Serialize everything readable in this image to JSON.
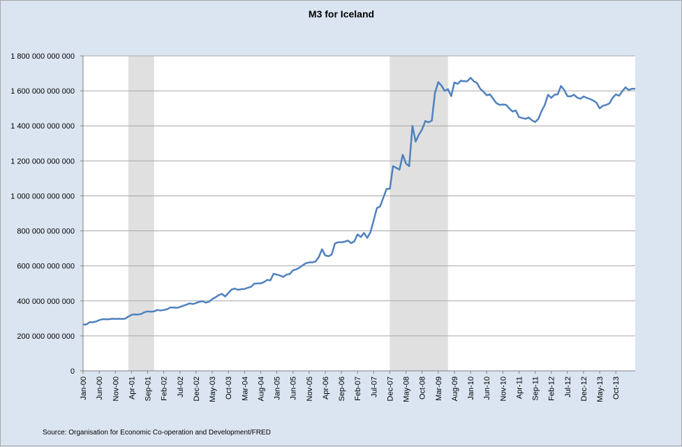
{
  "chart_data": {
    "type": "line",
    "title": "M3 for Iceland",
    "source": "Source: Organisation for Economic Co-operation and Development/FRED",
    "start": "2000-01",
    "ylim": [
      0,
      1800000000000
    ],
    "yticks": [
      0,
      200000000000,
      400000000000,
      600000000000,
      800000000000,
      1000000000000,
      1200000000000,
      1400000000000,
      1600000000000,
      1800000000000
    ],
    "ytick_labels": [
      "0",
      "200 000 000 000",
      "400 000 000 000",
      "600 000 000 000",
      "800 000 000 000",
      "1 000 000 000 000",
      "1 200 000 000 000",
      "1 400 000 000 000",
      "1 600 000 000 000",
      "1 800 000 000 000"
    ],
    "xtick_labels": [
      "Jan-00",
      "Jun-00",
      "Nov-00",
      "Apr-01",
      "Sep-01",
      "Feb-02",
      "Jul-02",
      "Dec-02",
      "May-03",
      "Oct-03",
      "Mar-04",
      "Aug-04",
      "Jan-05",
      "Jun-05",
      "Nov-05",
      "Apr-06",
      "Sep-06",
      "Feb-07",
      "Jul-07",
      "Dec-07",
      "May-08",
      "Oct-08",
      "Mar-09",
      "Aug-09",
      "Jan-10",
      "Jun-10",
      "Nov-10",
      "Apr-11",
      "Sep-11",
      "Feb-12",
      "Jul-12",
      "Dec-12",
      "May-13",
      "Oct-13"
    ],
    "recessions": [
      [
        "2001-03",
        "2001-11"
      ],
      [
        "2007-12",
        "2009-06"
      ]
    ],
    "grid": true,
    "line_color": "#4f81bd",
    "recession_color": "#e0e0e0",
    "values": [
      265,
      265,
      278,
      278,
      282,
      290,
      295,
      295,
      295,
      298,
      297,
      298,
      297,
      298,
      310,
      320,
      323,
      322,
      325,
      335,
      340,
      338,
      340,
      348,
      345,
      348,
      352,
      362,
      362,
      360,
      365,
      372,
      378,
      386,
      382,
      388,
      395,
      398,
      390,
      395,
      410,
      420,
      433,
      440,
      425,
      445,
      465,
      470,
      463,
      467,
      468,
      475,
      480,
      498,
      500,
      500,
      507,
      520,
      517,
      555,
      550,
      545,
      537,
      550,
      553,
      575,
      580,
      590,
      603,
      615,
      620,
      620,
      625,
      650,
      695,
      660,
      655,
      665,
      728,
      735,
      735,
      738,
      745,
      730,
      740,
      780,
      765,
      788,
      760,
      792,
      860,
      930,
      940,
      990,
      1040,
      1040,
      1170,
      1160,
      1150,
      1235,
      1185,
      1170,
      1400,
      1310,
      1350,
      1380,
      1428,
      1420,
      1430,
      1590,
      1650,
      1630,
      1600,
      1610,
      1570,
      1648,
      1640,
      1658,
      1655,
      1655,
      1675,
      1655,
      1645,
      1612,
      1595,
      1575,
      1580,
      1555,
      1530,
      1520,
      1522,
      1520,
      1500,
      1482,
      1488,
      1450,
      1445,
      1440,
      1448,
      1432,
      1422,
      1440,
      1485,
      1520,
      1578,
      1560,
      1578,
      1580,
      1628,
      1605,
      1570,
      1568,
      1578,
      1562,
      1555,
      1568,
      1560,
      1553,
      1545,
      1532,
      1500,
      1515,
      1520,
      1528,
      1560,
      1580,
      1572,
      1598,
      1620,
      1605,
      1612,
      1612
    ]
  }
}
